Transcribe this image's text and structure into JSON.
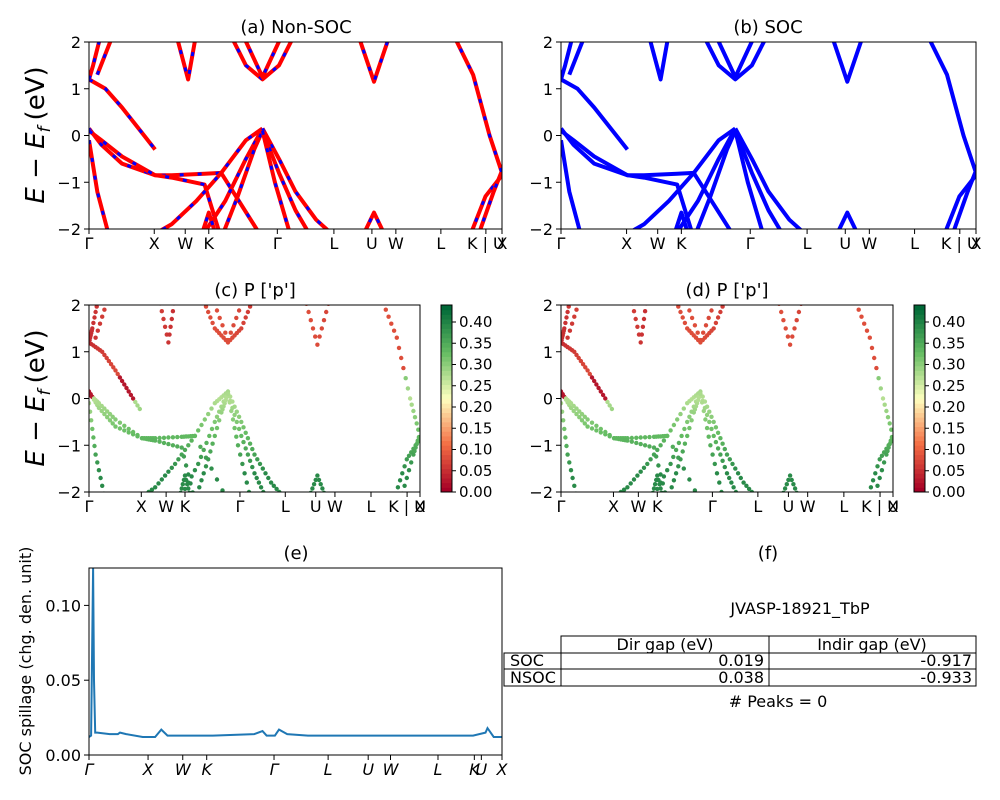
{
  "colors": {
    "red": "#ff0000",
    "blue": "#0000ff",
    "spill": "#1f77b4",
    "black": "#000000"
  },
  "y_tick_labels": [
    "2",
    "1",
    "0",
    "−1",
    "−2"
  ],
  "band_ylabel_main": "E − E",
  "band_ylabel_sub": "f",
  "band_ylabel_unit": "(eV)",
  "panels": {
    "a": {
      "title": "(a) Non-SOC",
      "kticks": [
        "Γ",
        "X",
        "W",
        "K",
        "Γ",
        "L",
        "U",
        "W",
        "L",
        "K | U",
        "X"
      ]
    },
    "b": {
      "title": "(b) SOC",
      "kticks": [
        "Γ",
        "X",
        "W",
        "K",
        "Γ",
        "L",
        "U",
        "W",
        "L",
        "K | U",
        "X"
      ]
    },
    "c": {
      "title": "(c)  P ['p']",
      "kticks": [
        "Γ",
        "X",
        "W",
        "K",
        "Γ",
        "L",
        "U",
        "W",
        "L",
        "K | U",
        "X"
      ],
      "colorbar_ticks": [
        "0.40",
        "0.35",
        "0.30",
        "0.25",
        "0.20",
        "0.15",
        "0.10",
        "0.05",
        "0.00"
      ]
    },
    "d": {
      "title": "(d) P ['p']",
      "kticks": [
        "Γ",
        "X",
        "W",
        "K",
        "Γ",
        "L",
        "U",
        "W",
        "L",
        "K | U",
        "X"
      ],
      "colorbar_ticks": [
        "0.40",
        "0.35",
        "0.30",
        "0.25",
        "0.20",
        "0.15",
        "0.10",
        "0.05",
        "0.00"
      ]
    },
    "e": {
      "title": "(e)",
      "ylabel": "SOC spillage (chg. den. unit)",
      "yticks": [
        "0.00",
        "0.05",
        "0.10"
      ],
      "kticks": [
        "Γ",
        "X",
        "W",
        "K",
        "Γ",
        "L",
        "U",
        "W",
        "L",
        "K",
        "U",
        "X"
      ]
    },
    "f": {
      "title": "(f)",
      "material": "JVASP-18921_TbP",
      "table": {
        "headers": [
          "Dir gap (eV)",
          "Indir gap (eV)"
        ],
        "rows": [
          {
            "label": "SOC",
            "dir": "0.019",
            "indir": "-0.917"
          },
          {
            "label": "NSOC",
            "dir": "0.038",
            "indir": "-0.933"
          }
        ]
      },
      "peaks": "# Peaks = 0"
    }
  },
  "chart_data": [
    {
      "panel": "a",
      "type": "line",
      "title": "(a) Non-SOC",
      "xlabel": "",
      "ylabel": "E − E_f (eV)",
      "ylim": [
        -2,
        2
      ],
      "x_ticks": [
        "Γ",
        "X",
        "W",
        "K",
        "Γ",
        "L",
        "U",
        "W",
        "L",
        "K | U",
        "X"
      ],
      "series_colors": [
        "#ff0000",
        "#0000ff"
      ],
      "bands": [
        {
          "x": [
            0,
            0.03,
            0.08,
            0.16,
            0.2,
            0.28,
            0.32,
            0.42,
            0.44,
            0.46,
            0.48,
            0.5,
            0.55,
            0.6
          ],
          "y": [
            0.15,
            -0.2,
            -0.6,
            -0.85,
            -0.85,
            -0.82,
            -0.8,
            -2.2,
            null,
            null,
            null,
            null,
            null,
            null
          ]
        },
        {
          "x": [
            0,
            0.03,
            0.08,
            0.16,
            0.2,
            0.28,
            0.32
          ],
          "y": [
            0.1,
            -0.1,
            -0.45,
            -0.85,
            -0.9,
            -1.05,
            -2.2
          ]
        },
        {
          "x": [
            0,
            0.02,
            0.05
          ],
          "y": [
            -0.1,
            -1.2,
            -2.2
          ]
        },
        {
          "x": [
            0.14,
            0.2,
            0.26,
            0.32,
            0.38,
            0.42
          ],
          "y": [
            -2.2,
            -1.9,
            -1.4,
            -0.8,
            -0.1,
            0.15
          ]
        },
        {
          "x": [
            0.27,
            0.33,
            0.38,
            0.42
          ],
          "y": [
            -2.2,
            -1.4,
            -0.5,
            0.15
          ]
        },
        {
          "x": [
            0.32,
            0.36,
            0.4,
            0.42
          ],
          "y": [
            -2.2,
            -1.3,
            -0.3,
            0.1
          ]
        },
        {
          "x": [
            0.42,
            0.46,
            0.5,
            0.55,
            0.6
          ],
          "y": [
            0.15,
            -0.5,
            -1.2,
            -1.8,
            -2.2
          ]
        },
        {
          "x": [
            0.42,
            0.46,
            0.5,
            0.54
          ],
          "y": [
            0.1,
            -0.8,
            -1.6,
            -2.2
          ]
        },
        {
          "x": [
            0.42,
            0.45,
            0.49
          ],
          "y": [
            0.1,
            -1.0,
            -2.2
          ]
        },
        {
          "x": [
            0.27,
            0.29,
            0.31
          ],
          "y": [
            -2.2,
            -1.65,
            -2.2
          ]
        },
        {
          "x": [
            0.66,
            0.69,
            0.72
          ],
          "y": [
            -2.2,
            -1.65,
            -2.2
          ]
        },
        {
          "x": [
            0.92,
            0.96,
            1.0
          ],
          "y": [
            -2.2,
            -1.3,
            -0.85
          ]
        },
        {
          "x": [
            0.94,
            0.98,
            1.0
          ],
          "y": [
            -2.2,
            -1.2,
            -0.75
          ]
        },
        {
          "x": [
            0.88,
            0.93,
            0.97,
            1.0
          ],
          "y": [
            2.2,
            1.3,
            0.0,
            -0.8
          ]
        },
        {
          "x": [
            0,
            0.04,
            0.08,
            0.12,
            0.16
          ],
          "y": [
            1.2,
            1.0,
            0.6,
            0.15,
            -0.3
          ]
        },
        {
          "x": [
            0,
            0.01,
            0.03
          ],
          "y": [
            1.2,
            1.5,
            2.2
          ]
        },
        {
          "x": [
            0.02,
            0.06
          ],
          "y": [
            1.3,
            2.2
          ]
        },
        {
          "x": [
            0.21,
            0.24,
            0.26
          ],
          "y": [
            2.2,
            1.2,
            2.2
          ]
        },
        {
          "x": [
            0.34,
            0.38,
            0.42,
            0.46,
            0.5
          ],
          "y": [
            2.2,
            1.5,
            1.2,
            1.5,
            2.2
          ]
        },
        {
          "x": [
            0.37,
            0.42,
            0.47
          ],
          "y": [
            2.2,
            1.25,
            2.2
          ]
        },
        {
          "x": [
            0.65,
            0.69,
            0.73
          ],
          "y": [
            2.2,
            1.15,
            2.2
          ]
        }
      ]
    },
    {
      "panel": "b",
      "type": "line",
      "title": "(b) SOC",
      "ylim": [
        -2,
        2
      ],
      "x_ticks": [
        "Γ",
        "X",
        "W",
        "K",
        "Γ",
        "L",
        "U",
        "W",
        "L",
        "K | U",
        "X"
      ],
      "series_colors": [
        "#0000ff"
      ]
    },
    {
      "panel": "c",
      "type": "scatter",
      "title": "(c)  P ['p']",
      "ylim": [
        -2,
        2
      ],
      "colorbar": {
        "min": 0.0,
        "max": 0.44,
        "colormap": "RdYlGn"
      }
    },
    {
      "panel": "d",
      "type": "scatter",
      "title": "(d) P ['p']",
      "ylim": [
        -2,
        2
      ],
      "colorbar": {
        "min": 0.0,
        "max": 0.44,
        "colormap": "RdYlGn"
      }
    },
    {
      "panel": "e",
      "type": "line",
      "title": "(e)",
      "xlabel": "",
      "ylabel": "SOC spillage (chg. den. unit)",
      "ylim": [
        0,
        0.125
      ],
      "x": [
        0,
        0.005,
        0.01,
        0.012,
        0.015,
        0.02,
        0.05,
        0.07,
        0.075,
        0.09,
        0.13,
        0.16,
        0.175,
        0.19,
        0.22,
        0.3,
        0.4,
        0.42,
        0.43,
        0.45,
        0.46,
        0.48,
        0.53,
        0.6,
        0.68,
        0.75,
        0.8,
        0.85,
        0.93,
        0.96,
        0.965,
        0.98,
        1.0
      ],
      "y": [
        0.012,
        0.013,
        0.125,
        0.05,
        0.015,
        0.015,
        0.014,
        0.014,
        0.015,
        0.014,
        0.012,
        0.012,
        0.017,
        0.013,
        0.013,
        0.013,
        0.014,
        0.016,
        0.013,
        0.013,
        0.017,
        0.014,
        0.013,
        0.013,
        0.013,
        0.013,
        0.013,
        0.013,
        0.013,
        0.015,
        0.018,
        0.012,
        0.012
      ]
    }
  ]
}
